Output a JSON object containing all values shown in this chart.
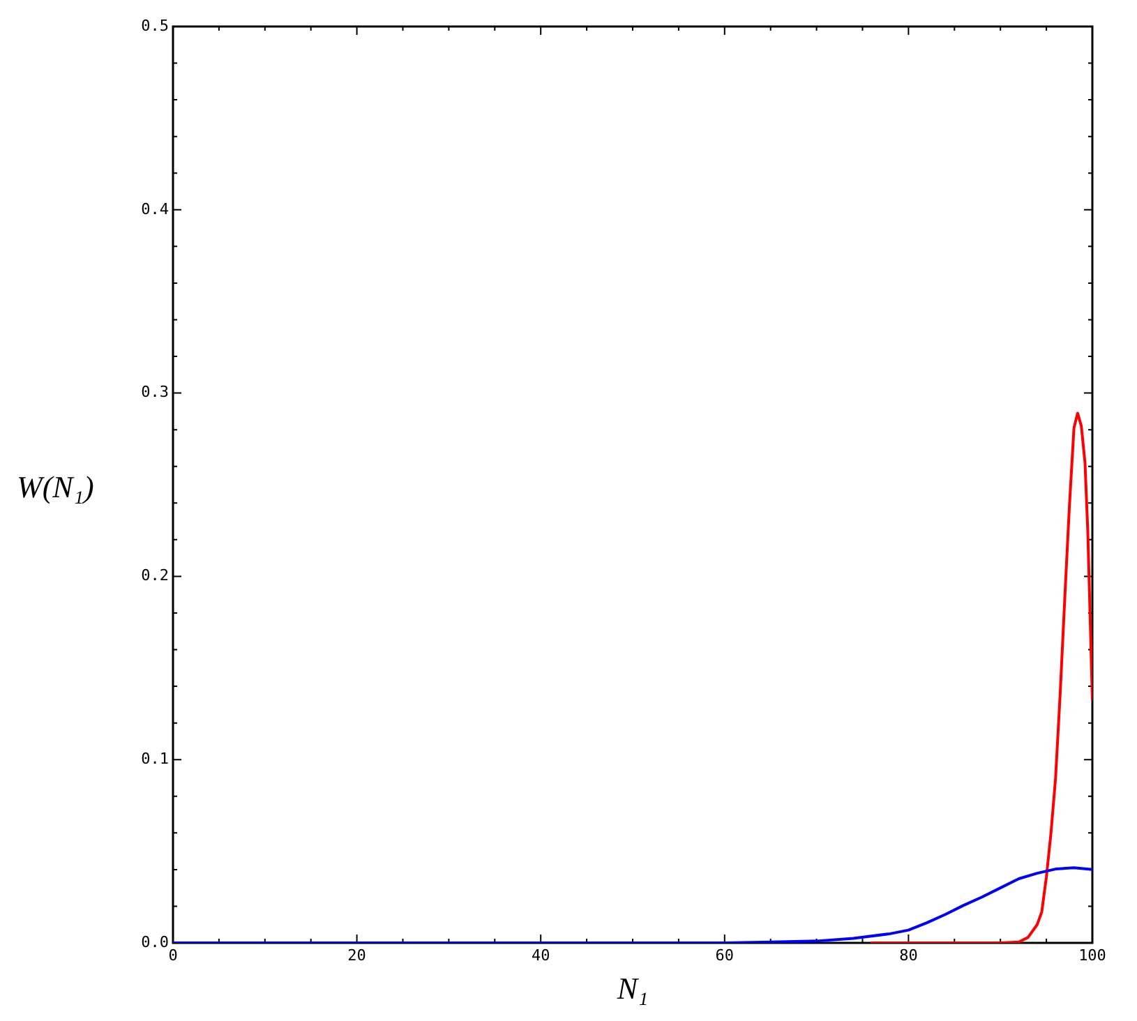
{
  "chart_data": {
    "type": "line",
    "xlabel": "N₁",
    "ylabel": "W(N₁)",
    "xlim": [
      0,
      100
    ],
    "ylim": [
      0,
      0.5
    ],
    "xticks": [
      0,
      {
        "value": 5,
        "label": null
      },
      {
        "value": 10,
        "label": null
      },
      {
        "value": 15,
        "label": null
      },
      20,
      {
        "value": 25,
        "label": null
      },
      {
        "value": 30,
        "label": null
      },
      {
        "value": 35,
        "label": null
      },
      40,
      {
        "value": 45,
        "label": null
      },
      {
        "value": 50,
        "label": null
      },
      {
        "value": 55,
        "label": null
      },
      60,
      {
        "value": 65,
        "label": null
      },
      {
        "value": 70,
        "label": null
      },
      {
        "value": 75,
        "label": null
      },
      80,
      {
        "value": 85,
        "label": null
      },
      {
        "value": 90,
        "label": null
      },
      {
        "value": 95,
        "label": null
      },
      100
    ],
    "yticks": [
      {
        "value": 0,
        "label": "0.0"
      },
      {
        "value": 0.02,
        "label": null
      },
      {
        "value": 0.04,
        "label": null
      },
      {
        "value": 0.06,
        "label": null
      },
      {
        "value": 0.08,
        "label": null
      },
      0.1,
      {
        "value": 0.12,
        "label": null
      },
      {
        "value": 0.14,
        "label": null
      },
      {
        "value": 0.16,
        "label": null
      },
      {
        "value": 0.18,
        "label": null
      },
      0.2,
      {
        "value": 0.22,
        "label": null
      },
      {
        "value": 0.24,
        "label": null
      },
      {
        "value": 0.26,
        "label": null
      },
      {
        "value": 0.28,
        "label": null
      },
      0.3,
      {
        "value": 0.32,
        "label": null
      },
      {
        "value": 0.34,
        "label": null
      },
      {
        "value": 0.36,
        "label": null
      },
      {
        "value": 0.38,
        "label": null
      },
      0.4,
      {
        "value": 0.42,
        "label": null
      },
      {
        "value": 0.44,
        "label": null
      },
      {
        "value": 0.46,
        "label": null
      },
      {
        "value": 0.48,
        "label": null
      },
      0.5
    ],
    "series": [
      {
        "color": "#ff0000",
        "x": [
          76,
          90,
          92,
          93,
          94,
          94.5,
          95,
          95.5,
          96,
          96.5,
          97,
          97.5,
          98,
          98.4,
          98.8,
          99.2,
          99.5,
          99.8,
          100
        ],
        "values": [
          0,
          0,
          0.0005,
          0.003,
          0.01,
          0.017,
          0.036,
          0.06,
          0.09,
          0.136,
          0.188,
          0.238,
          0.281,
          0.289,
          0.282,
          0.262,
          0.225,
          0.17,
          0.133
        ]
      },
      {
        "color": "#0000ff",
        "x": [
          0,
          60,
          65,
          70,
          74,
          78,
          80,
          82,
          84,
          86,
          88,
          90,
          92,
          94,
          96,
          98,
          100
        ],
        "values": [
          0,
          0,
          0.0005,
          0.001,
          0.0025,
          0.005,
          0.007,
          0.011,
          0.0155,
          0.0205,
          0.025,
          0.03,
          0.035,
          0.038,
          0.0403,
          0.041,
          0.04
        ]
      }
    ]
  }
}
